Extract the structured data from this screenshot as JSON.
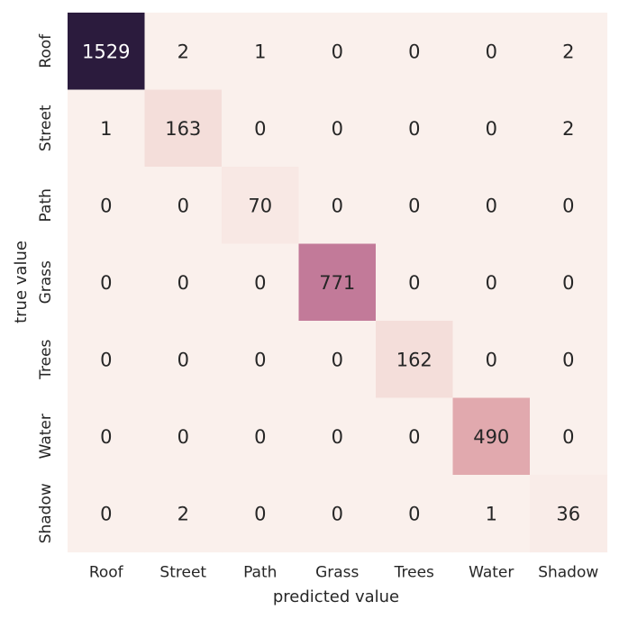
{
  "chart_data": {
    "type": "heatmap",
    "title": "",
    "xlabel": "predicted value",
    "ylabel": "true value",
    "x_categories": [
      "Roof",
      "Street",
      "Path",
      "Grass",
      "Trees",
      "Water",
      "Shadow"
    ],
    "y_categories": [
      "Roof",
      "Street",
      "Path",
      "Grass",
      "Trees",
      "Water",
      "Shadow"
    ],
    "values": [
      [
        1529,
        2,
        1,
        0,
        0,
        0,
        2
      ],
      [
        1,
        163,
        0,
        0,
        0,
        0,
        2
      ],
      [
        0,
        0,
        70,
        0,
        0,
        0,
        0
      ],
      [
        0,
        0,
        0,
        771,
        0,
        0,
        0
      ],
      [
        0,
        0,
        0,
        0,
        162,
        0,
        0
      ],
      [
        0,
        0,
        0,
        0,
        0,
        490,
        0
      ],
      [
        0,
        2,
        0,
        0,
        0,
        1,
        36
      ]
    ],
    "value_range": [
      0,
      1529
    ],
    "annotated": true,
    "colorbar": false,
    "colormap": [
      "#faf0ec",
      "#f1d4d0",
      "#e0a5ab",
      "#c37b9a",
      "#8e5080",
      "#552e5e",
      "#2b1b3d"
    ],
    "text_color_dark": "#262626",
    "text_color_light": "#ffffff"
  }
}
